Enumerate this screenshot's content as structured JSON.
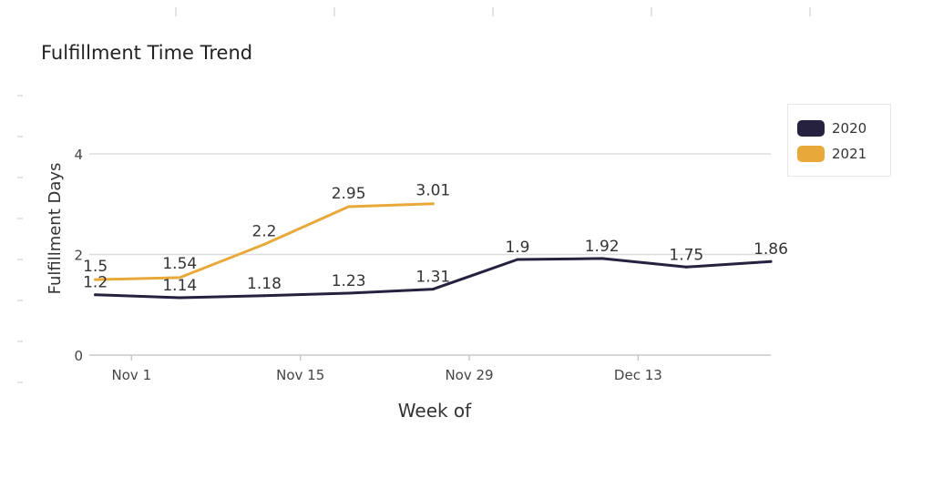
{
  "chart_data": {
    "type": "line",
    "title": "Fulfillment Time Trend",
    "xlabel": "Week of",
    "ylabel": "Fulfillment Days",
    "ylim": [
      0,
      4
    ],
    "yticks": [
      0,
      2,
      4
    ],
    "x_tick_labels": [
      "Nov 1",
      "Nov 15",
      "Nov 29",
      "Dec 13"
    ],
    "x_ticks": [
      0,
      14,
      28,
      42
    ],
    "grid": true,
    "legend_position": "top-right",
    "series": [
      {
        "name": "2020",
        "color": "#26213f",
        "x": [
          -3,
          4,
          11,
          18,
          25,
          32,
          39,
          46,
          53
        ],
        "values": [
          1.2,
          1.14,
          1.18,
          1.23,
          1.31,
          1.9,
          1.92,
          1.75,
          1.86
        ],
        "labels": [
          "1.2",
          "1.14",
          "1.18",
          "1.23",
          "1.31",
          "1.9",
          "1.92",
          "1.75",
          "1.86"
        ]
      },
      {
        "name": "2021",
        "color": "#e8a93a",
        "x": [
          -3,
          4,
          11,
          18,
          25
        ],
        "values": [
          1.5,
          1.54,
          2.2,
          2.95,
          3.01
        ],
        "labels": [
          "1.5",
          "1.54",
          "2.2",
          "2.95",
          "3.01"
        ]
      }
    ]
  }
}
